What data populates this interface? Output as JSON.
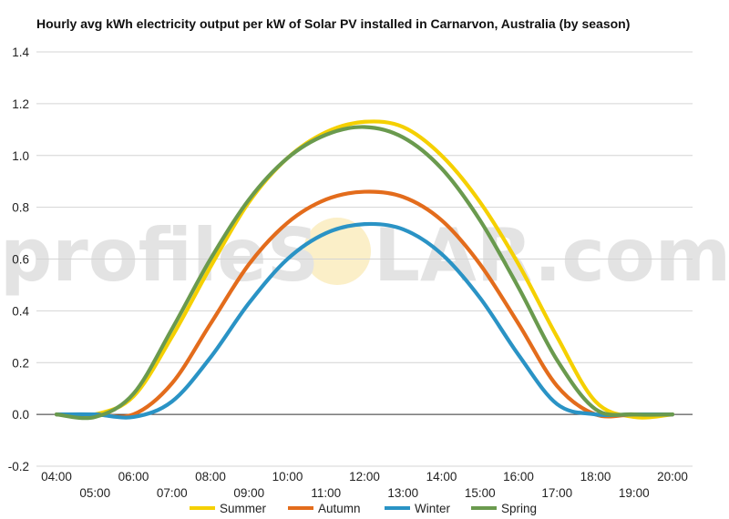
{
  "watermark": {
    "left": "profileS",
    "right": "LAR.com"
  },
  "chart_data": {
    "type": "line",
    "title": "Hourly avg kWh electricity output per kW of Solar PV installed in Carnarvon, Australia (by season)",
    "xlabel": "",
    "ylabel": "",
    "x": [
      "04:00",
      "05:00",
      "06:00",
      "07:00",
      "08:00",
      "09:00",
      "10:00",
      "11:00",
      "12:00",
      "13:00",
      "14:00",
      "15:00",
      "16:00",
      "17:00",
      "18:00",
      "19:00",
      "20:00"
    ],
    "ylim": [
      -0.2,
      1.4
    ],
    "yticks": [
      "-0.2",
      "0.0",
      "0.2",
      "0.4",
      "0.6",
      "0.8",
      "1.0",
      "1.2",
      "1.4"
    ],
    "grid": true,
    "legend": "bottom",
    "series": [
      {
        "name": "Summer",
        "color": "#F5D000",
        "values": [
          0.0,
          0.0,
          0.07,
          0.3,
          0.57,
          0.82,
          0.99,
          1.09,
          1.13,
          1.11,
          1.0,
          0.82,
          0.58,
          0.3,
          0.05,
          -0.01,
          0.0
        ]
      },
      {
        "name": "Autumn",
        "color": "#E36C1C",
        "values": [
          0.0,
          0.0,
          0.0,
          0.12,
          0.35,
          0.58,
          0.74,
          0.83,
          0.86,
          0.84,
          0.75,
          0.58,
          0.35,
          0.11,
          0.0,
          0.0,
          0.0
        ]
      },
      {
        "name": "Winter",
        "color": "#2A93C5",
        "values": [
          0.0,
          0.0,
          -0.01,
          0.05,
          0.22,
          0.43,
          0.6,
          0.7,
          0.735,
          0.715,
          0.62,
          0.45,
          0.23,
          0.04,
          0.0,
          0.0,
          0.0
        ]
      },
      {
        "name": "Spring",
        "color": "#6A9A4E",
        "values": [
          0.0,
          -0.01,
          0.08,
          0.33,
          0.6,
          0.83,
          0.99,
          1.08,
          1.11,
          1.07,
          0.95,
          0.75,
          0.49,
          0.21,
          0.02,
          0.0,
          0.0
        ]
      }
    ]
  }
}
